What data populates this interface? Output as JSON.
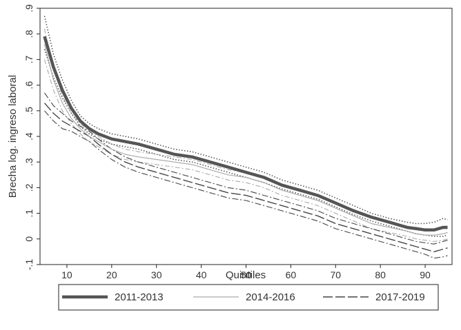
{
  "chart_data": {
    "type": "line",
    "xlabel": "Quintiles",
    "ylabel": "Brecha log. ingreso laboral",
    "xlim": [
      4,
      96
    ],
    "ylim": [
      -0.1,
      0.9
    ],
    "x_ticks": [
      10,
      20,
      30,
      40,
      50,
      60,
      70,
      80,
      90
    ],
    "x_tick_labels": [
      "10",
      "20",
      "30",
      "40",
      "50",
      "60",
      "70",
      "80",
      "90"
    ],
    "y_ticks": [
      -0.1,
      0,
      0.1,
      0.2,
      0.3,
      0.4,
      0.5,
      0.6,
      0.7,
      0.8,
      0.9
    ],
    "y_tick_labels": [
      "-.1",
      "0",
      ".1",
      ".2",
      ".3",
      ".4",
      ".5",
      ".6",
      ".7",
      ".8",
      ".9"
    ],
    "grid": false,
    "legend_position": "bottom",
    "x": [
      5,
      7,
      9,
      11,
      13,
      15,
      17,
      20,
      23,
      26,
      30,
      34,
      38,
      42,
      46,
      50,
      54,
      58,
      62,
      66,
      70,
      74,
      78,
      82,
      86,
      88,
      90,
      92,
      94,
      95
    ],
    "series": [
      {
        "name": "2011-2013",
        "style": "thick",
        "color": "#555555",
        "values": [
          0.79,
          0.67,
          0.58,
          0.51,
          0.46,
          0.43,
          0.41,
          0.39,
          0.38,
          0.37,
          0.35,
          0.33,
          0.32,
          0.3,
          0.28,
          0.26,
          0.24,
          0.21,
          0.19,
          0.17,
          0.14,
          0.11,
          0.085,
          0.065,
          0.045,
          0.04,
          0.035,
          0.035,
          0.045,
          0.045
        ],
        "ci_lower": [
          0.74,
          0.63,
          0.55,
          0.49,
          0.44,
          0.41,
          0.39,
          0.37,
          0.36,
          0.35,
          0.33,
          0.31,
          0.3,
          0.28,
          0.26,
          0.24,
          0.22,
          0.195,
          0.175,
          0.155,
          0.125,
          0.095,
          0.07,
          0.05,
          0.03,
          0.02,
          0.015,
          0.01,
          0.01,
          0.015
        ],
        "ci_upper": [
          0.87,
          0.72,
          0.62,
          0.54,
          0.48,
          0.45,
          0.43,
          0.41,
          0.4,
          0.39,
          0.37,
          0.35,
          0.34,
          0.32,
          0.3,
          0.28,
          0.26,
          0.23,
          0.21,
          0.19,
          0.16,
          0.13,
          0.1,
          0.08,
          0.065,
          0.06,
          0.06,
          0.065,
          0.08,
          0.075
        ]
      },
      {
        "name": "2014-2016",
        "style": "thin",
        "color": "#aaaaaa",
        "values": [
          0.76,
          0.62,
          0.53,
          0.47,
          0.43,
          0.4,
          0.38,
          0.35,
          0.33,
          0.32,
          0.31,
          0.3,
          0.29,
          0.27,
          0.25,
          0.24,
          0.22,
          0.19,
          0.17,
          0.15,
          0.12,
          0.09,
          0.06,
          0.045,
          0.03,
          0.02,
          0.015,
          0.015,
          0.02,
          0.025
        ],
        "ci_lower": [
          0.7,
          0.58,
          0.5,
          0.45,
          0.41,
          0.38,
          0.36,
          0.33,
          0.31,
          0.3,
          0.29,
          0.28,
          0.27,
          0.25,
          0.23,
          0.22,
          0.2,
          0.17,
          0.15,
          0.13,
          0.1,
          0.07,
          0.04,
          0.025,
          0.01,
          0.0,
          -0.005,
          -0.01,
          -0.005,
          0.0
        ],
        "ci_upper": [
          0.82,
          0.66,
          0.56,
          0.49,
          0.45,
          0.42,
          0.4,
          0.37,
          0.35,
          0.34,
          0.33,
          0.32,
          0.31,
          0.29,
          0.27,
          0.26,
          0.24,
          0.21,
          0.19,
          0.17,
          0.14,
          0.11,
          0.08,
          0.065,
          0.05,
          0.045,
          0.04,
          0.04,
          0.05,
          0.05
        ]
      },
      {
        "name": "2017-2019",
        "style": "medium",
        "color": "#444444",
        "values": [
          0.53,
          0.49,
          0.46,
          0.44,
          0.42,
          0.4,
          0.37,
          0.33,
          0.3,
          0.28,
          0.26,
          0.24,
          0.22,
          0.2,
          0.18,
          0.17,
          0.15,
          0.13,
          0.11,
          0.09,
          0.06,
          0.04,
          0.02,
          0.0,
          -0.02,
          -0.03,
          -0.04,
          -0.05,
          -0.04,
          -0.035
        ],
        "ci_lower": [
          0.5,
          0.46,
          0.43,
          0.42,
          0.4,
          0.38,
          0.35,
          0.31,
          0.28,
          0.26,
          0.24,
          0.22,
          0.2,
          0.18,
          0.16,
          0.15,
          0.13,
          0.11,
          0.09,
          0.07,
          0.04,
          0.02,
          0.0,
          -0.02,
          -0.04,
          -0.05,
          -0.06,
          -0.075,
          -0.07,
          -0.065
        ],
        "ci_upper": [
          0.57,
          0.52,
          0.49,
          0.46,
          0.44,
          0.42,
          0.39,
          0.35,
          0.32,
          0.3,
          0.28,
          0.26,
          0.24,
          0.22,
          0.2,
          0.19,
          0.17,
          0.15,
          0.13,
          0.11,
          0.08,
          0.06,
          0.04,
          0.02,
          0.0,
          -0.01,
          -0.015,
          -0.02,
          -0.01,
          -0.005
        ]
      }
    ]
  }
}
